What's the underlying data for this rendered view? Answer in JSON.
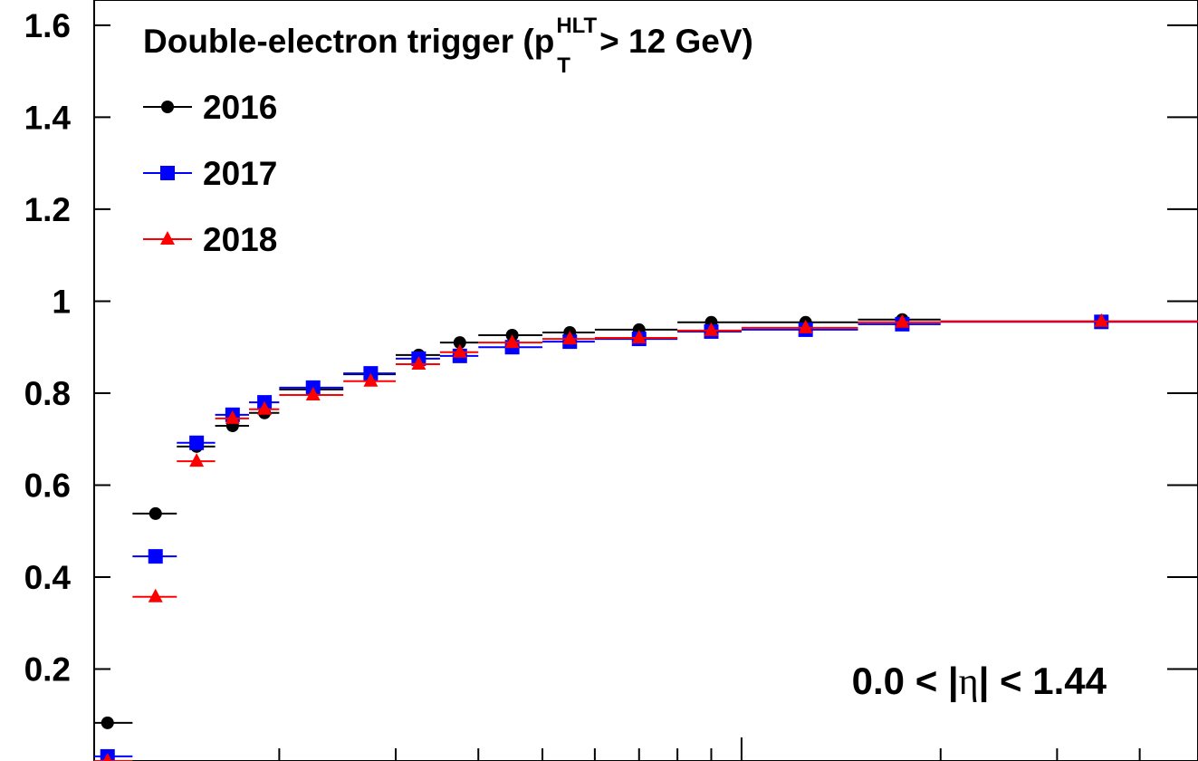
{
  "chart_data": {
    "type": "errorbar",
    "title": {
      "main": "Double-electron trigger (p",
      "subscript": "T",
      "superscript": "HLT",
      "rest": " > 12 GeV)"
    },
    "annotation": {
      "before": "0.0 < |",
      "symbol": "η",
      "after": "| < 1.44"
    },
    "xscale": "log",
    "xlim": [
      10.5,
      490
    ],
    "xticks": [
      20,
      30,
      40,
      50,
      60,
      70,
      80,
      90,
      100,
      200,
      300,
      400
    ],
    "ylim": [
      0,
      1.655
    ],
    "yticks": [
      0.2,
      0.4,
      0.6,
      0.8,
      1,
      1.2,
      1.4,
      1.6
    ],
    "legend": "upper left",
    "bins": [
      10,
      12,
      14,
      16,
      18,
      20,
      25,
      30,
      35,
      40,
      50,
      60,
      80,
      100,
      150,
      200,
      500
    ],
    "x": [
      11,
      13,
      15,
      17,
      19,
      22.5,
      27.5,
      32.5,
      37.5,
      45,
      55,
      70,
      90,
      125,
      175,
      350
    ],
    "series": [
      {
        "name": "2016",
        "color": "#000000",
        "marker": "circle",
        "values": [
          0.083,
          0.538,
          0.684,
          0.729,
          0.757,
          0.808,
          0.841,
          0.883,
          0.91,
          0.926,
          0.932,
          0.938,
          0.954,
          0.954,
          0.96,
          0.956
        ]
      },
      {
        "name": "2017",
        "color": "#0000ff",
        "marker": "square",
        "values": [
          0.01,
          0.445,
          0.692,
          0.753,
          0.78,
          0.812,
          0.843,
          0.875,
          0.881,
          0.9,
          0.912,
          0.918,
          0.934,
          0.938,
          0.95,
          0.955
        ]
      },
      {
        "name": "2018",
        "color": "#ff0000",
        "marker": "triangle",
        "values": [
          0.0,
          0.357,
          0.652,
          0.745,
          0.765,
          0.796,
          0.826,
          0.863,
          0.889,
          0.91,
          0.918,
          0.92,
          0.936,
          0.942,
          0.954,
          0.956
        ]
      }
    ]
  }
}
